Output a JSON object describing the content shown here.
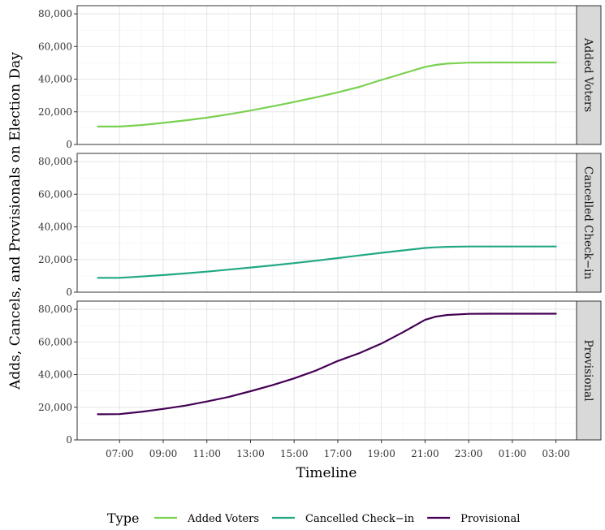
{
  "chart_data": {
    "type": "line",
    "facet_layout": "rows",
    "grid": true,
    "legend_position": "bottom",
    "ylabel": "Adds, Cancels, and Provisionals on Election Day",
    "xlabel": "Timeline",
    "x_ticks": [
      "07:00",
      "09:00",
      "11:00",
      "13:00",
      "15:00",
      "17:00",
      "19:00",
      "21:00",
      "23:00",
      "01:00",
      "03:00"
    ],
    "y_ticks": [
      "0",
      "20,000",
      "40,000",
      "60,000",
      "80,000"
    ],
    "ylim": [
      0,
      85000
    ],
    "x": [
      "06:00",
      "07:00",
      "08:00",
      "09:00",
      "10:00",
      "11:00",
      "12:00",
      "13:00",
      "14:00",
      "15:00",
      "16:00",
      "17:00",
      "18:00",
      "19:00",
      "20:00",
      "21:00",
      "21:30",
      "22:00",
      "23:00",
      "00:00",
      "01:00",
      "02:00",
      "03:00"
    ],
    "legend": {
      "title": "Type",
      "items": [
        {
          "label": "Added Voters",
          "color": "#7AD151"
        },
        {
          "label": "Cancelled Check−in",
          "color": "#22A884"
        },
        {
          "label": "Provisional",
          "color": "#440154"
        }
      ]
    },
    "series": [
      {
        "name": "Added Voters",
        "color": "#7AD151",
        "values": [
          11000,
          11000,
          11900,
          13200,
          14700,
          16400,
          18500,
          20800,
          23300,
          26000,
          28900,
          31900,
          35300,
          39500,
          43500,
          47500,
          48700,
          49500,
          50100,
          50200,
          50200,
          50200,
          50200
        ]
      },
      {
        "name": "Cancelled Check−in",
        "color": "#22A884",
        "values": [
          8800,
          8800,
          9600,
          10500,
          11500,
          12600,
          13800,
          15100,
          16400,
          17800,
          19300,
          20900,
          22500,
          24100,
          25600,
          27100,
          27500,
          27800,
          28000,
          28000,
          28000,
          28000,
          28000
        ]
      },
      {
        "name": "Provisional",
        "color": "#440154",
        "values": [
          15700,
          15800,
          17200,
          19000,
          21000,
          23500,
          26300,
          29800,
          33500,
          37700,
          42500,
          48300,
          53200,
          59000,
          66000,
          73500,
          75500,
          76500,
          77200,
          77300,
          77300,
          77300,
          77300
        ]
      }
    ]
  }
}
